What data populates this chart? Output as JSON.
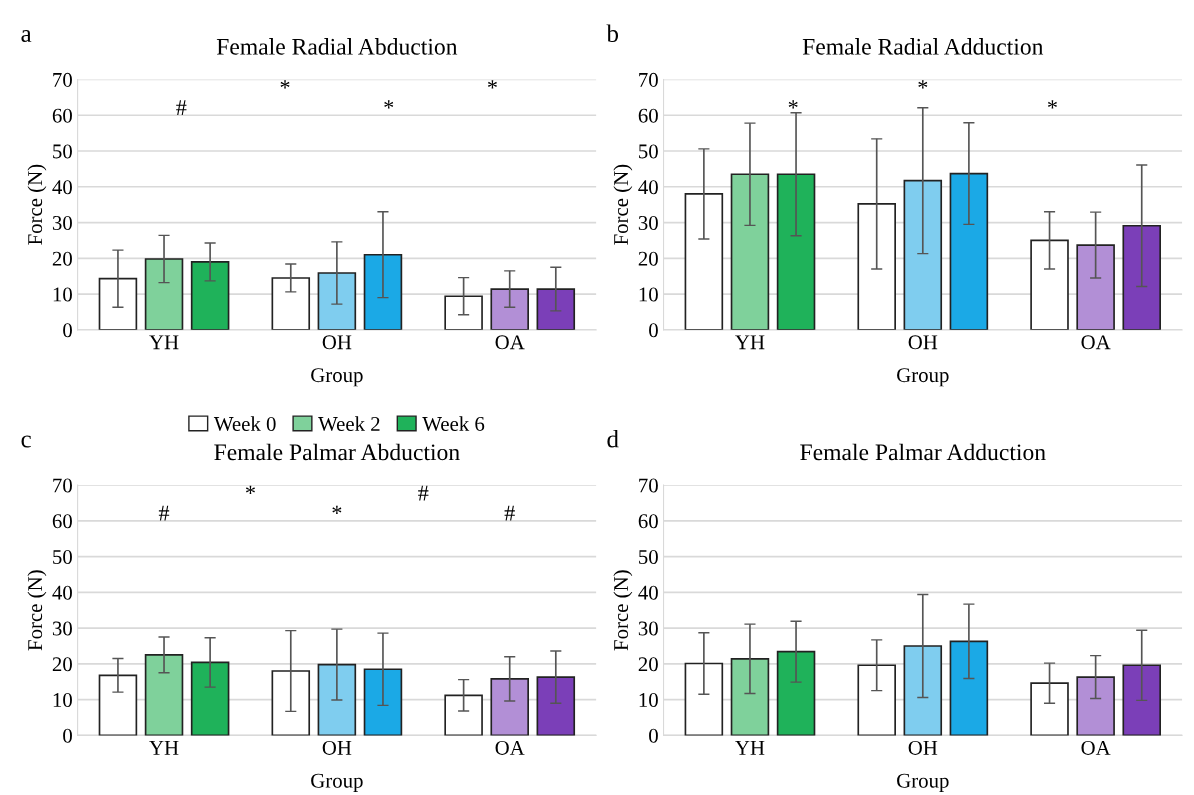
{
  "chart_data": [
    {
      "type": "bar",
      "title": "Female Radial Abduction",
      "xlabel": "Group",
      "ylabel": "Force (N)",
      "categories": [
        "YH",
        "OH",
        "OA"
      ],
      "ylim": [
        0,
        70
      ],
      "yticks": [
        0,
        10,
        20,
        30,
        40,
        50,
        60,
        70
      ],
      "grid": "y",
      "legend": "bottom",
      "series": [
        {
          "name": "Week 0",
          "color": "#ffffff",
          "colors": [
            "#ffffff",
            "#ffffff",
            "#ffffff"
          ],
          "values": [
            14.3,
            14.5,
            9.4
          ],
          "errors": [
            8,
            3.9,
            5.2
          ]
        },
        {
          "name": "Week 2",
          "color": "#7fd19b",
          "colors": [
            "#7fd19b",
            "#7fcdef",
            "#b28fd6"
          ],
          "values": [
            19.8,
            15.9,
            11.4
          ],
          "errors": [
            6.6,
            8.7,
            5.1
          ]
        },
        {
          "name": "Week 6",
          "color": "#1fb25a",
          "colors": [
            "#1fb25a",
            "#1ba9e6",
            "#7b3fb8"
          ],
          "values": [
            19,
            21,
            11.4
          ],
          "errors": [
            5.3,
            12,
            6.1
          ]
        }
      ],
      "annotations": [
        "a",
        "#",
        "*",
        "*",
        "*"
      ]
    },
    {
      "type": "bar",
      "title": "Female Radial Adduction",
      "xlabel": "Group",
      "ylabel": "Force (N)",
      "categories": [
        "YH",
        "OH",
        "OA"
      ],
      "ylim": [
        0,
        70
      ],
      "yticks": [
        0,
        10,
        20,
        30,
        40,
        50,
        60,
        70
      ],
      "grid": "y",
      "series": [
        {
          "colors": [
            "#ffffff",
            "#ffffff",
            "#ffffff"
          ],
          "values": [
            38,
            35.2,
            25
          ],
          "errors": [
            12.6,
            18.2,
            8
          ]
        },
        {
          "colors": [
            "#7fd19b",
            "#7fcdef",
            "#b28fd6"
          ],
          "values": [
            43.5,
            41.7,
            23.7
          ],
          "errors": [
            14.3,
            20.4,
            9.2
          ]
        },
        {
          "colors": [
            "#1fb25a",
            "#1ba9e6",
            "#7b3fb8"
          ],
          "values": [
            43.5,
            43.7,
            29.1
          ],
          "errors": [
            17.2,
            14.2,
            17
          ]
        }
      ],
      "annotations": [
        "b",
        "*",
        "*",
        "*"
      ]
    },
    {
      "type": "bar",
      "title": "Female Palmar Abduction",
      "xlabel": "Group",
      "ylabel": "Force (N)",
      "categories": [
        "YH",
        "OH",
        "OA"
      ],
      "ylim": [
        0,
        70
      ],
      "yticks": [
        0,
        10,
        20,
        30,
        40,
        50,
        60,
        70
      ],
      "grid": "y",
      "series": [
        {
          "colors": [
            "#ffffff",
            "#ffffff",
            "#ffffff"
          ],
          "values": [
            16.8,
            18,
            11.2
          ],
          "errors": [
            4.7,
            11.3,
            4.4
          ]
        },
        {
          "colors": [
            "#7fd19b",
            "#7fcdef",
            "#b28fd6"
          ],
          "values": [
            22.5,
            19.8,
            15.8
          ],
          "errors": [
            5,
            9.9,
            6.2
          ]
        },
        {
          "colors": [
            "#1fb25a",
            "#1ba9e6",
            "#7b3fb8"
          ],
          "values": [
            20.4,
            18.5,
            16.3
          ],
          "errors": [
            6.9,
            10.1,
            7.3
          ]
        }
      ],
      "annotations": [
        "c",
        "#",
        "*",
        "*",
        "#",
        "#"
      ]
    },
    {
      "type": "bar",
      "title": "Female Palmar Adduction",
      "xlabel": "Group",
      "ylabel": "Force (N)",
      "categories": [
        "YH",
        "OH",
        "OA"
      ],
      "ylim": [
        0,
        70
      ],
      "yticks": [
        0,
        10,
        20,
        30,
        40,
        50,
        60,
        70
      ],
      "grid": "y",
      "series": [
        {
          "colors": [
            "#ffffff",
            "#ffffff",
            "#ffffff"
          ],
          "values": [
            20.1,
            19.6,
            14.6
          ],
          "errors": [
            8.6,
            7.1,
            5.6
          ]
        },
        {
          "colors": [
            "#7fd19b",
            "#7fcdef",
            "#b28fd6"
          ],
          "values": [
            21.4,
            25,
            16.3
          ],
          "errors": [
            9.7,
            14.4,
            6
          ]
        },
        {
          "colors": [
            "#1fb25a",
            "#1ba9e6",
            "#7b3fb8"
          ],
          "values": [
            23.4,
            26.3,
            19.6
          ],
          "errors": [
            8.5,
            10.4,
            9.8
          ]
        }
      ],
      "annotations": [
        "d"
      ]
    }
  ]
}
